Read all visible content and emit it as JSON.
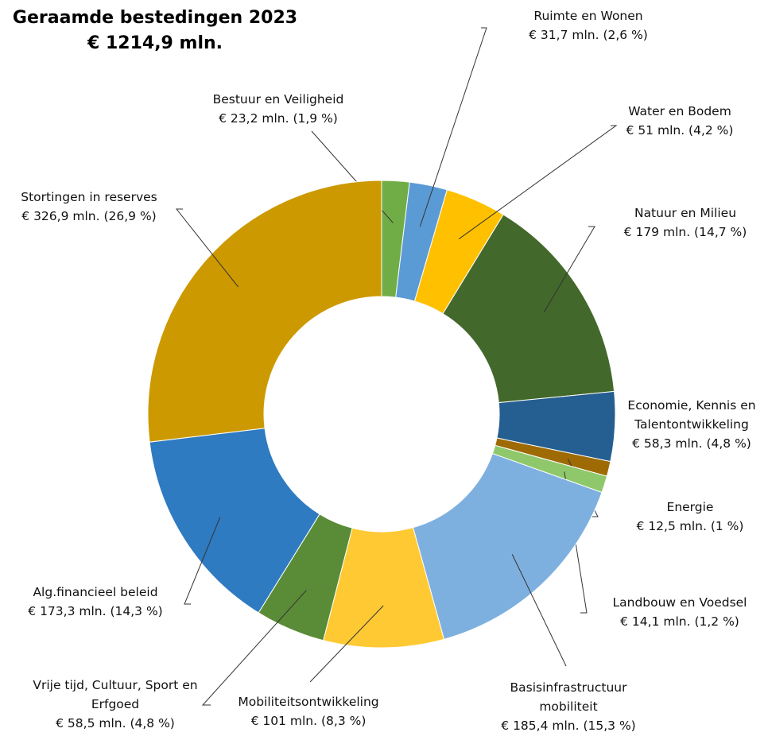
{
  "chart_data": {
    "type": "donut",
    "title": "Geraamde bestedingen 2023",
    "subtitle": "€ 1214,9 mln.",
    "categories": [
      "Bestuur en Veiligheid",
      "Ruimte en Wonen",
      "Water en Bodem",
      "Natuur  en  Milieu",
      "Economie, Kennis en Talentontwikkeling",
      "Energie",
      "Landbouw en Voedsel",
      "Basisinfrastructuur mobiliteit",
      "Mobiliteitsontwikkeling",
      "Vrije tijd, Cultuur, Sport en Erfgoed",
      "Alg.financieel beleid",
      "Stortingen in reserves"
    ],
    "values": [
      23.2,
      31.7,
      51,
      179,
      58.3,
      12.5,
      14.1,
      185.4,
      101,
      58.5,
      173.3,
      326.9
    ],
    "value_labels": [
      "€ 23,2 mln. (1,9 %)",
      "€ 31,7 mln. (2,6 %)",
      "€ 51 mln. (4,2 %)",
      "€ 179 mln. (14,7 %)",
      "€ 58,3 mln. (4,8 %)",
      "€ 12,5 mln. (1 %)",
      "€ 14,1 mln. (1,2 %)",
      "€ 185,4 mln. (15,3 %)",
      "€ 101 mln. (8,3 %)",
      "€ 58,5 mln. (4,8 %)",
      "€ 173,3 mln. (14,3 %)",
      "€ 326,9 mln. (26,9 %)"
    ],
    "colors": [
      "#70ad47",
      "#5b9bd5",
      "#ffc000",
      "#43682b",
      "#255e91",
      "#9e6a03",
      "#8fc86a",
      "#7eb0df",
      "#ffc933",
      "#5a8c37",
      "#2f7bc2",
      "#cc9900"
    ]
  }
}
